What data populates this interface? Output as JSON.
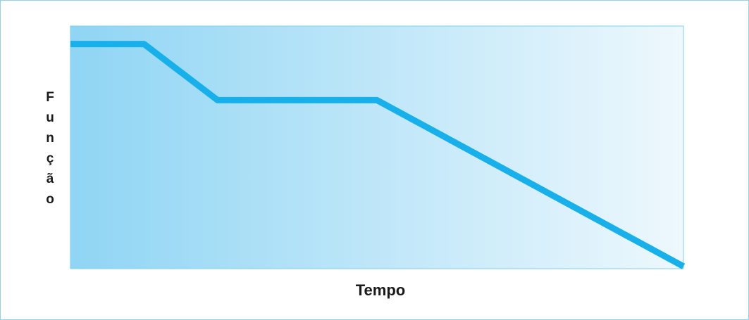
{
  "chart_data": {
    "type": "line",
    "xlabel": "Tempo",
    "ylabel": "Função",
    "ylabel_chars": [
      "F",
      "u",
      "n",
      "ç",
      "ã",
      "o"
    ],
    "series": [
      {
        "x": [
          0,
          12,
          24,
          50,
          100
        ],
        "values": [
          100,
          100,
          75,
          75,
          1
        ]
      }
    ],
    "xlim": [
      0,
      100
    ],
    "ylim": [
      0,
      108
    ],
    "grid": false,
    "legend": "none",
    "colors": {
      "line": "#18b0ea",
      "plot_border": "#7fd0ef",
      "gradient_start": "#8fd5f4",
      "gradient_end": "#eef8fd",
      "frame_border": "#8fd3ef"
    }
  }
}
